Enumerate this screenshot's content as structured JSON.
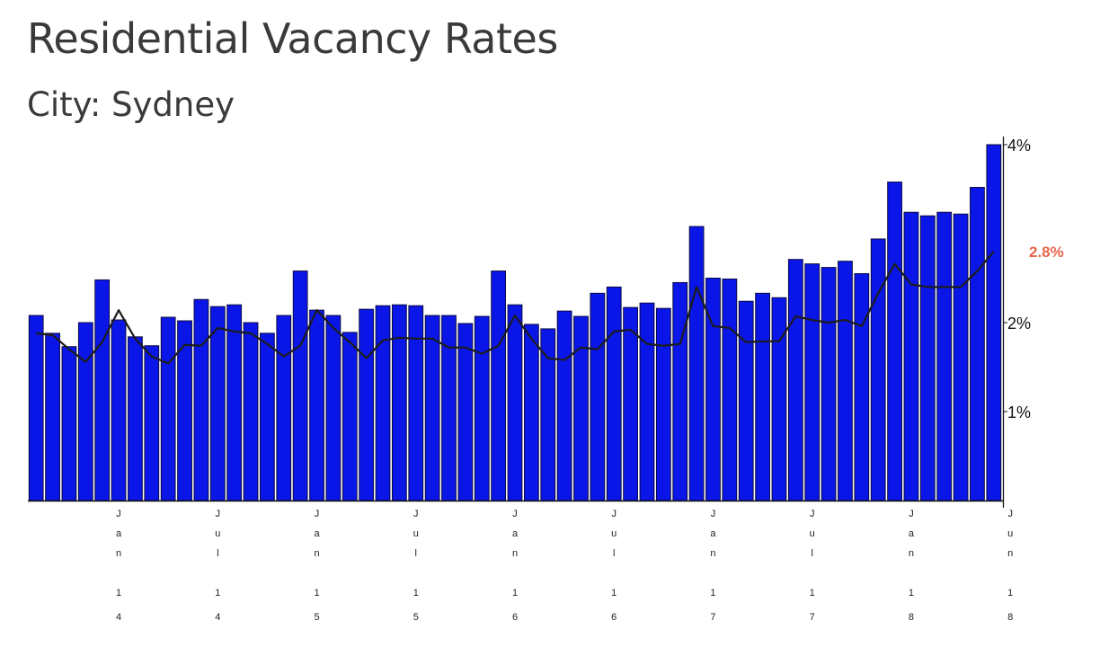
{
  "header": {
    "title": "Residential Vacancy Rates",
    "subtitle": "City: Sydney"
  },
  "chart_data": {
    "type": "bar",
    "title": "Residential Vacancy Rates",
    "subtitle": "City: Sydney",
    "ylim": [
      0,
      4.0
    ],
    "y_ticks": [
      {
        "value": 4.0,
        "label": "4%"
      },
      {
        "value": 2.0,
        "label": "2%"
      },
      {
        "value": 1.0,
        "label": "1%"
      }
    ],
    "x_ticks": [
      {
        "index": 5,
        "label": "Jan 14"
      },
      {
        "index": 11,
        "label": "Jul 14"
      },
      {
        "index": 17,
        "label": "Jan 15"
      },
      {
        "index": 23,
        "label": "Jul 15"
      },
      {
        "index": 29,
        "label": "Jan 16"
      },
      {
        "index": 35,
        "label": "Jul 16"
      },
      {
        "index": 41,
        "label": "Jan 17"
      },
      {
        "index": 47,
        "label": "Jul 17"
      },
      {
        "index": 53,
        "label": "Jan 18"
      },
      {
        "index": 59,
        "label": "Jun 18"
      }
    ],
    "series": [
      {
        "type": "bar",
        "values": [
          2.08,
          1.88,
          1.73,
          2.0,
          2.48,
          2.03,
          1.84,
          1.74,
          2.06,
          2.02,
          2.26,
          2.18,
          2.2,
          2.0,
          1.88,
          2.08,
          2.58,
          2.14,
          2.08,
          1.89,
          2.15,
          2.19,
          2.2,
          2.19,
          2.08,
          2.08,
          1.99,
          2.07,
          2.58,
          2.2,
          1.98,
          1.93,
          2.13,
          2.07,
          2.33,
          2.4,
          2.17,
          2.22,
          2.16,
          2.45,
          3.08,
          2.5,
          2.49,
          2.24,
          2.33,
          2.28,
          2.71,
          2.66,
          2.62,
          2.69,
          2.55,
          2.94,
          3.58,
          3.24,
          3.2,
          3.24,
          3.22,
          3.52,
          4.0
        ],
        "color": "#0a16e8"
      },
      {
        "type": "line",
        "values": [
          1.88,
          1.86,
          1.7,
          1.56,
          1.78,
          2.14,
          1.82,
          1.62,
          1.54,
          1.75,
          1.74,
          1.94,
          1.9,
          1.88,
          1.76,
          1.62,
          1.74,
          2.14,
          1.94,
          1.78,
          1.6,
          1.8,
          1.83,
          1.82,
          1.82,
          1.72,
          1.72,
          1.65,
          1.74,
          2.08,
          1.82,
          1.6,
          1.58,
          1.72,
          1.7,
          1.9,
          1.92,
          1.76,
          1.74,
          1.76,
          2.4,
          1.96,
          1.94,
          1.78,
          1.79,
          1.79,
          2.07,
          2.03,
          2.0,
          2.03,
          1.96,
          2.33,
          2.66,
          2.43,
          2.4,
          2.4,
          2.4,
          2.58,
          2.8
        ],
        "color": "#1c1c1c"
      }
    ],
    "latest_label": "2.8%",
    "latest_label_color": "#e8664a",
    "grid": false,
    "legend": "none"
  }
}
